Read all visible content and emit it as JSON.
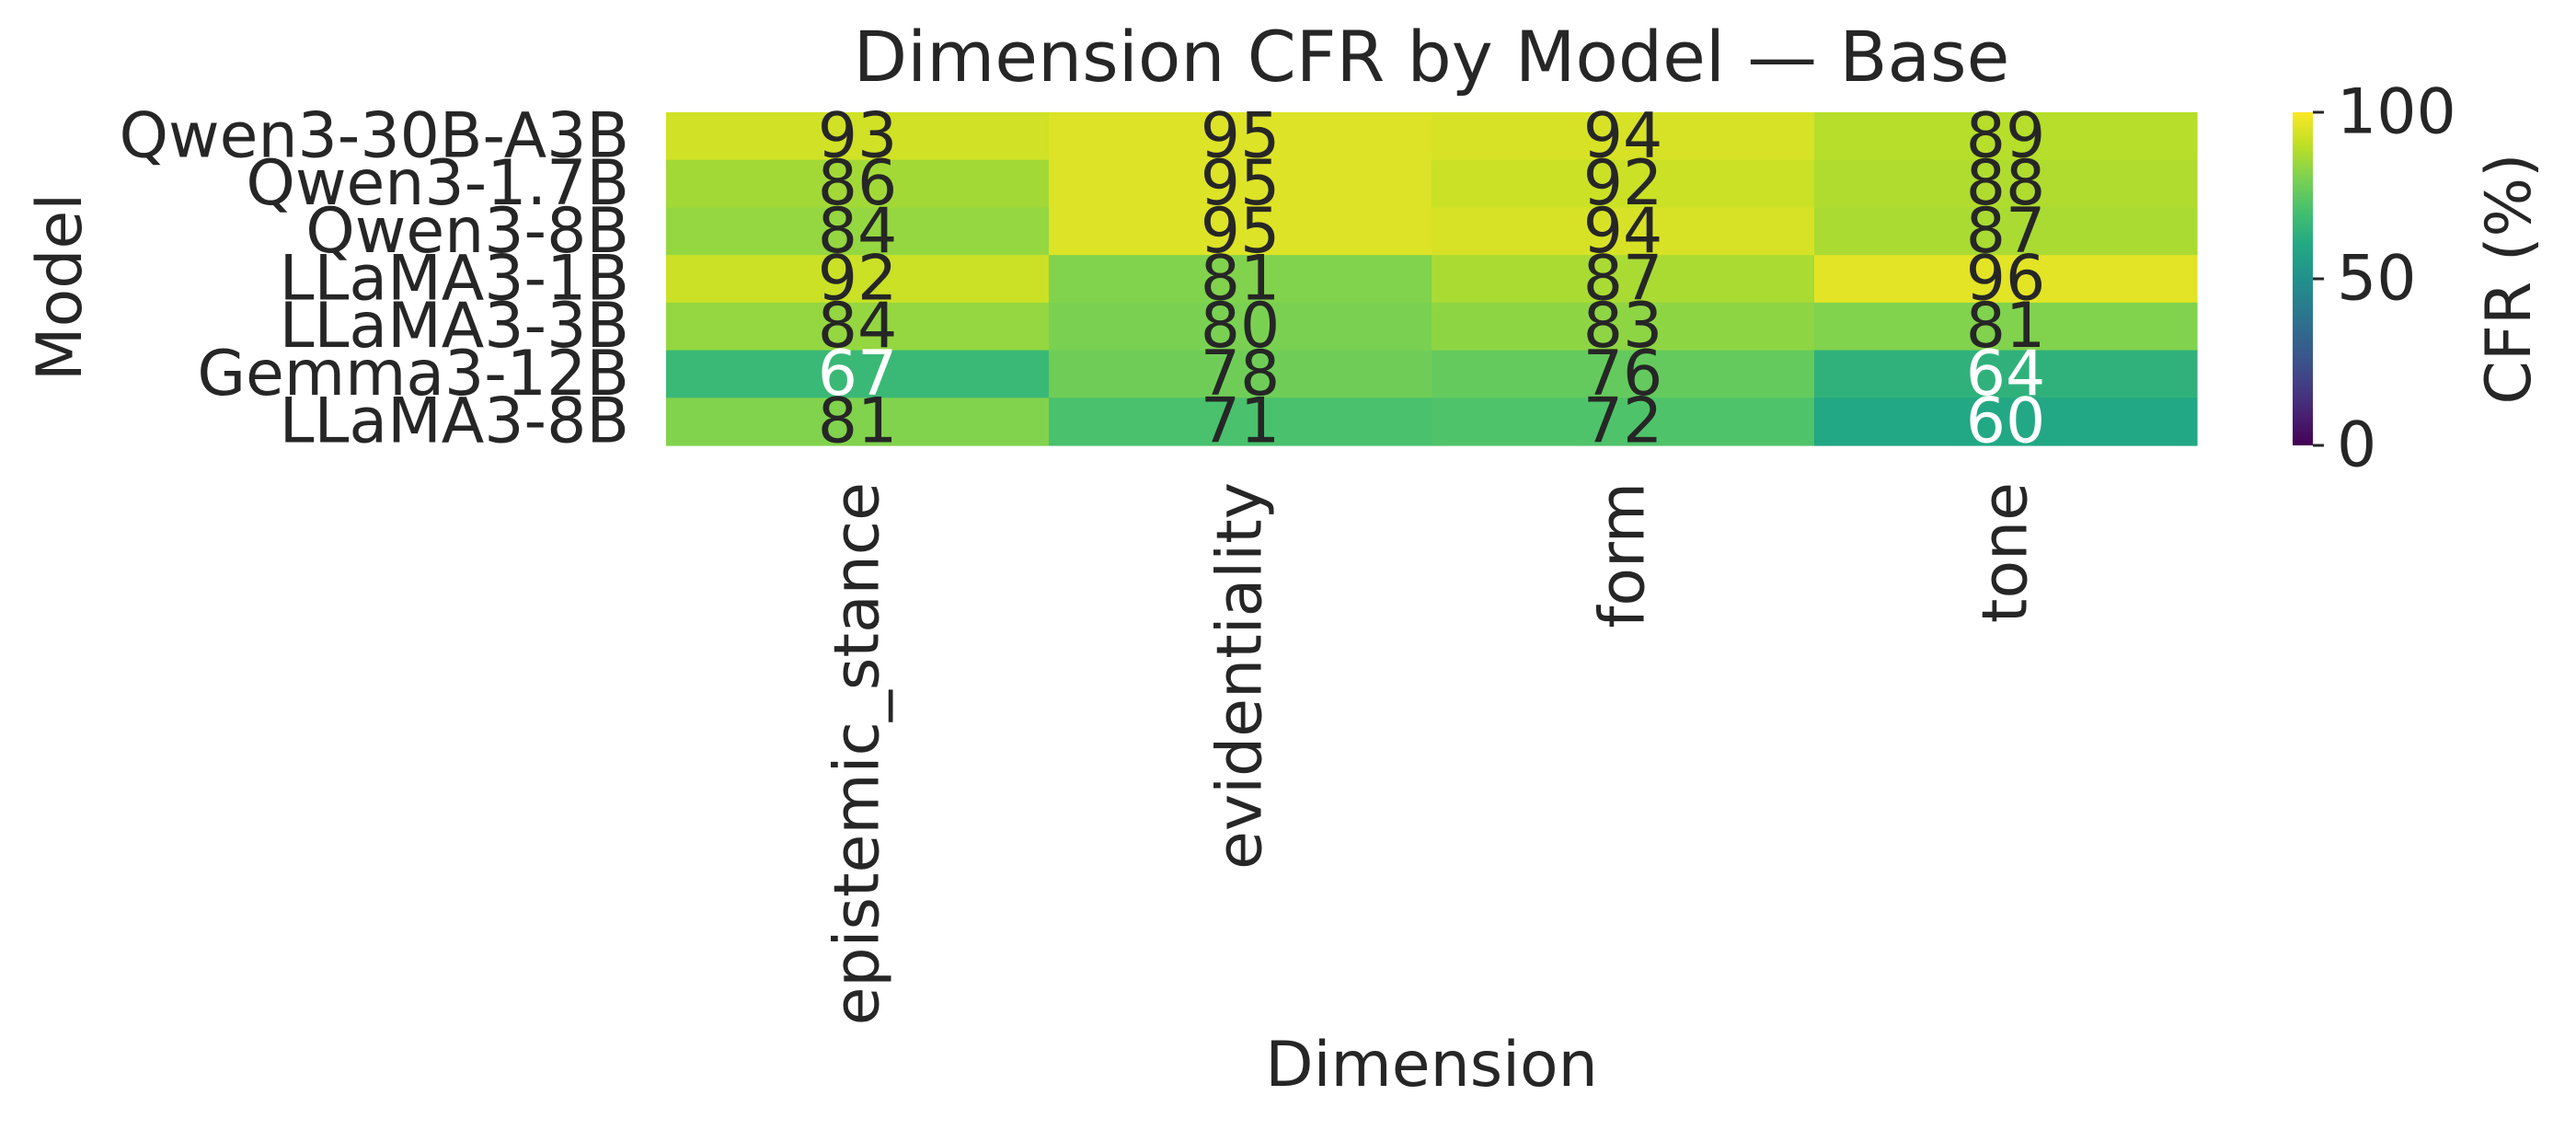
{
  "chart_data": {
    "type": "heatmap",
    "title": "Dimension CFR by Model — Base",
    "xlabel": "Dimension",
    "ylabel": "Model",
    "x_categories": [
      "epistemic_stance",
      "evidentiality",
      "form",
      "tone"
    ],
    "y_categories": [
      "Qwen3-30B-A3B",
      "Qwen3-1.7B",
      "Qwen3-8B",
      "LLaMA3-1B",
      "LLaMA3-3B",
      "Gemma3-12B",
      "LLaMA3-8B"
    ],
    "values": [
      [
        93,
        95,
        94,
        89
      ],
      [
        86,
        95,
        92,
        88
      ],
      [
        84,
        95,
        94,
        87
      ],
      [
        92,
        81,
        87,
        96
      ],
      [
        84,
        80,
        83,
        81
      ],
      [
        67,
        78,
        76,
        64
      ],
      [
        81,
        71,
        72,
        60
      ]
    ],
    "colorbar": {
      "label": "CFR (%)",
      "range": [
        0,
        100
      ],
      "ticks": [
        0,
        50,
        100
      ],
      "tick_labels": [
        "0",
        "50",
        "100"
      ],
      "colormap": "viridis"
    },
    "annotation_colors": {
      "dark": "#262626",
      "light": "#ffffff"
    },
    "grid": false
  }
}
